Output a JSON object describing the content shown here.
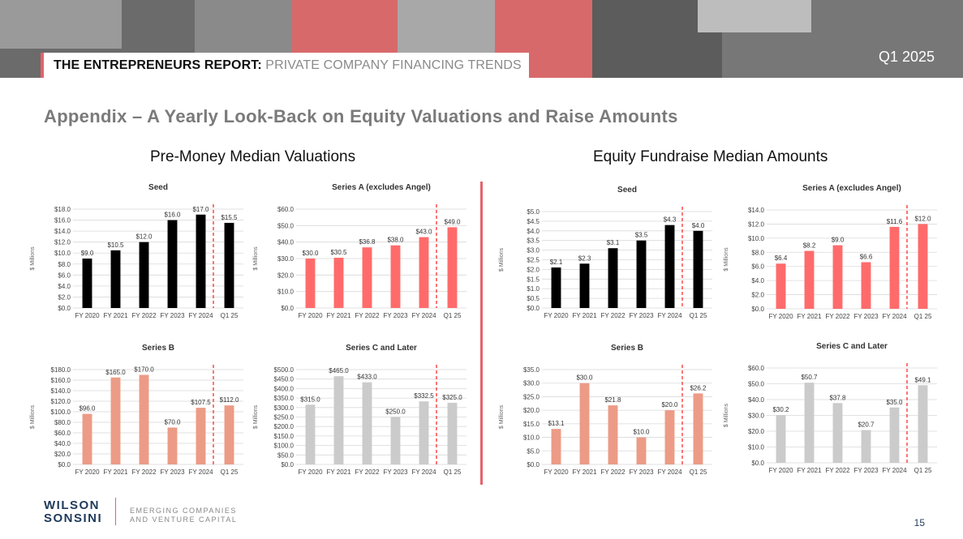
{
  "header": {
    "report_bold": "THE ENTREPRENEURS REPORT:",
    "report_sub": "PRIVATE COMPANY FINANCING TRENDS",
    "quarter": "Q1 2025"
  },
  "heading": "Appendix – A Yearly Look-Back on Equity Valuations and Raise Amounts",
  "sections": {
    "left_title": "Pre-Money Median Valuations",
    "right_title": "Equity Fundraise Median Amounts"
  },
  "footer": {
    "logo_line1": "WILSON",
    "logo_line2": "SONSINI",
    "tag_line1": "EMERGING COMPANIES",
    "tag_line2": "AND VENTURE CAPITAL",
    "page": "15"
  },
  "colors": {
    "black": "#000000",
    "red": "#ff6b6b",
    "salmon": "#ec9b86",
    "gray": "#cbcbcb",
    "accent": "#e4636a"
  },
  "chart_data": [
    {
      "type": "bar",
      "title": "Seed",
      "ylabel": "$ Millions",
      "categories": [
        "FY 2020",
        "FY 2021",
        "FY 2022",
        "FY 2023",
        "FY 2024",
        "Q1 25"
      ],
      "values": [
        9.0,
        10.5,
        12.0,
        16.0,
        17.0,
        15.5
      ],
      "labels": [
        "$9.0",
        "$10.5",
        "$12.0",
        "$16.0",
        "$17.0",
        "$15.5"
      ],
      "ylim": [
        0,
        18
      ],
      "ystep": 2,
      "yticks": [
        "$0.0",
        "$2.0",
        "$4.0",
        "$6.0",
        "$8.0",
        "$10.0",
        "$12.0",
        "$14.0",
        "$16.0",
        "$18.0"
      ],
      "color": "#000000"
    },
    {
      "type": "bar",
      "title": "Series A (excludes Angel)",
      "ylabel": "$ Millions",
      "categories": [
        "FY 2020",
        "FY 2021",
        "FY 2022",
        "FY 2023",
        "FY 2024",
        "Q1 25"
      ],
      "values": [
        30.0,
        30.5,
        36.8,
        38.0,
        43.0,
        49.0
      ],
      "labels": [
        "$30.0",
        "$30.5",
        "$36.8",
        "$38.0",
        "$43.0",
        "$49.0"
      ],
      "ylim": [
        0,
        60
      ],
      "ystep": 10,
      "yticks": [
        "$0.0",
        "$10.0",
        "$20.0",
        "$30.0",
        "$40.0",
        "$50.0",
        "$60.0"
      ],
      "color": "#ff6b6b"
    },
    {
      "type": "bar",
      "title": "Series B",
      "ylabel": "$ Millions",
      "categories": [
        "FY 2020",
        "FY 2021",
        "FY 2022",
        "FY 2023",
        "FY 2024",
        "Q1 25"
      ],
      "values": [
        96.0,
        165.0,
        170.0,
        70.0,
        107.5,
        112.0
      ],
      "labels": [
        "$96.0",
        "$165.0",
        "$170.0",
        "$70.0",
        "$107.5",
        "$112.0"
      ],
      "ylim": [
        0,
        180
      ],
      "ystep": 20,
      "yticks": [
        "$0.0",
        "$20.0",
        "$40.0",
        "$60.0",
        "$80.0",
        "$100.0",
        "$120.0",
        "$140.0",
        "$160.0",
        "$180.0"
      ],
      "color": "#ec9b86"
    },
    {
      "type": "bar",
      "title": "Series C and Later",
      "ylabel": "$ Millions",
      "categories": [
        "FY 2020",
        "FY 2021",
        "FY 2022",
        "FY 2023",
        "FY 2024",
        "Q1 25"
      ],
      "values": [
        315.0,
        465.0,
        433.0,
        250.0,
        332.5,
        325.0
      ],
      "labels": [
        "$315.0",
        "$465.0",
        "$433.0",
        "$250.0",
        "$332.5",
        "$325.0"
      ],
      "ylim": [
        0,
        500
      ],
      "ystep": 50,
      "yticks": [
        "$0.0",
        "$50.0",
        "$100.0",
        "$150.0",
        "$200.0",
        "$250.0",
        "$300.0",
        "$350.0",
        "$400.0",
        "$450.0",
        "$500.0"
      ],
      "color": "#cbcbcb"
    },
    {
      "type": "bar",
      "title": "Seed",
      "ylabel": "$ Millions",
      "categories": [
        "FY 2020",
        "FY 2021",
        "FY 2022",
        "FY 2023",
        "FY 2024",
        "Q1 25"
      ],
      "values": [
        2.1,
        2.3,
        3.1,
        3.5,
        4.3,
        4.0
      ],
      "labels": [
        "$2.1",
        "$2.3",
        "$3.1",
        "$3.5",
        "$4.3",
        "$4.0"
      ],
      "ylim": [
        0,
        5
      ],
      "ystep": 0.5,
      "yticks": [
        "$0.0",
        "$0.5",
        "$1.0",
        "$1.5",
        "$2.0",
        "$2.5",
        "$3.0",
        "$3.5",
        "$4.0",
        "$4.5",
        "$5.0"
      ],
      "color": "#000000"
    },
    {
      "type": "bar",
      "title": "Series A (excludes Angel)",
      "ylabel": "$ Millions",
      "categories": [
        "FY 2020",
        "FY 2021",
        "FY 2022",
        "FY 2023",
        "FY 2024",
        "Q1 25"
      ],
      "values": [
        6.4,
        8.2,
        9.0,
        6.6,
        11.6,
        12.0
      ],
      "labels": [
        "$6.4",
        "$8.2",
        "$9.0",
        "$6.6",
        "$11.6",
        "$12.0"
      ],
      "ylim": [
        0,
        14
      ],
      "ystep": 2,
      "yticks": [
        "$0.0",
        "$2.0",
        "$4.0",
        "$6.0",
        "$8.0",
        "$10.0",
        "$12.0",
        "$14.0"
      ],
      "color": "#ff6b6b"
    },
    {
      "type": "bar",
      "title": "Series B",
      "ylabel": "$ Millions",
      "categories": [
        "FY 2020",
        "FY 2021",
        "FY 2022",
        "FY 2023",
        "FY 2024",
        "Q1 25"
      ],
      "values": [
        13.1,
        30.0,
        21.8,
        10.0,
        20.0,
        26.2
      ],
      "labels": [
        "$13.1",
        "$30.0",
        "$21.8",
        "$10.0",
        "$20.0",
        "$26.2"
      ],
      "ylim": [
        0,
        35
      ],
      "ystep": 5,
      "yticks": [
        "$0.0",
        "$5.0",
        "$10.0",
        "$15.0",
        "$20.0",
        "$25.0",
        "$30.0",
        "$35.0"
      ],
      "color": "#ec9b86"
    },
    {
      "type": "bar",
      "title": "Series C and Later",
      "ylabel": "$ Millions",
      "categories": [
        "FY 2020",
        "FY 2021",
        "FY 2022",
        "FY 2023",
        "FY 2024",
        "Q1 25"
      ],
      "values": [
        30.2,
        50.7,
        37.8,
        20.7,
        35.0,
        49.1
      ],
      "labels": [
        "$30.2",
        "$50.7",
        "$37.8",
        "$20.7",
        "$35.0",
        "$49.1"
      ],
      "ylim": [
        0,
        60
      ],
      "ystep": 10,
      "yticks": [
        "$0.0",
        "$10.0",
        "$20.0",
        "$30.0",
        "$40.0",
        "$50.0",
        "$60.0"
      ],
      "color": "#cbcbcb"
    }
  ]
}
